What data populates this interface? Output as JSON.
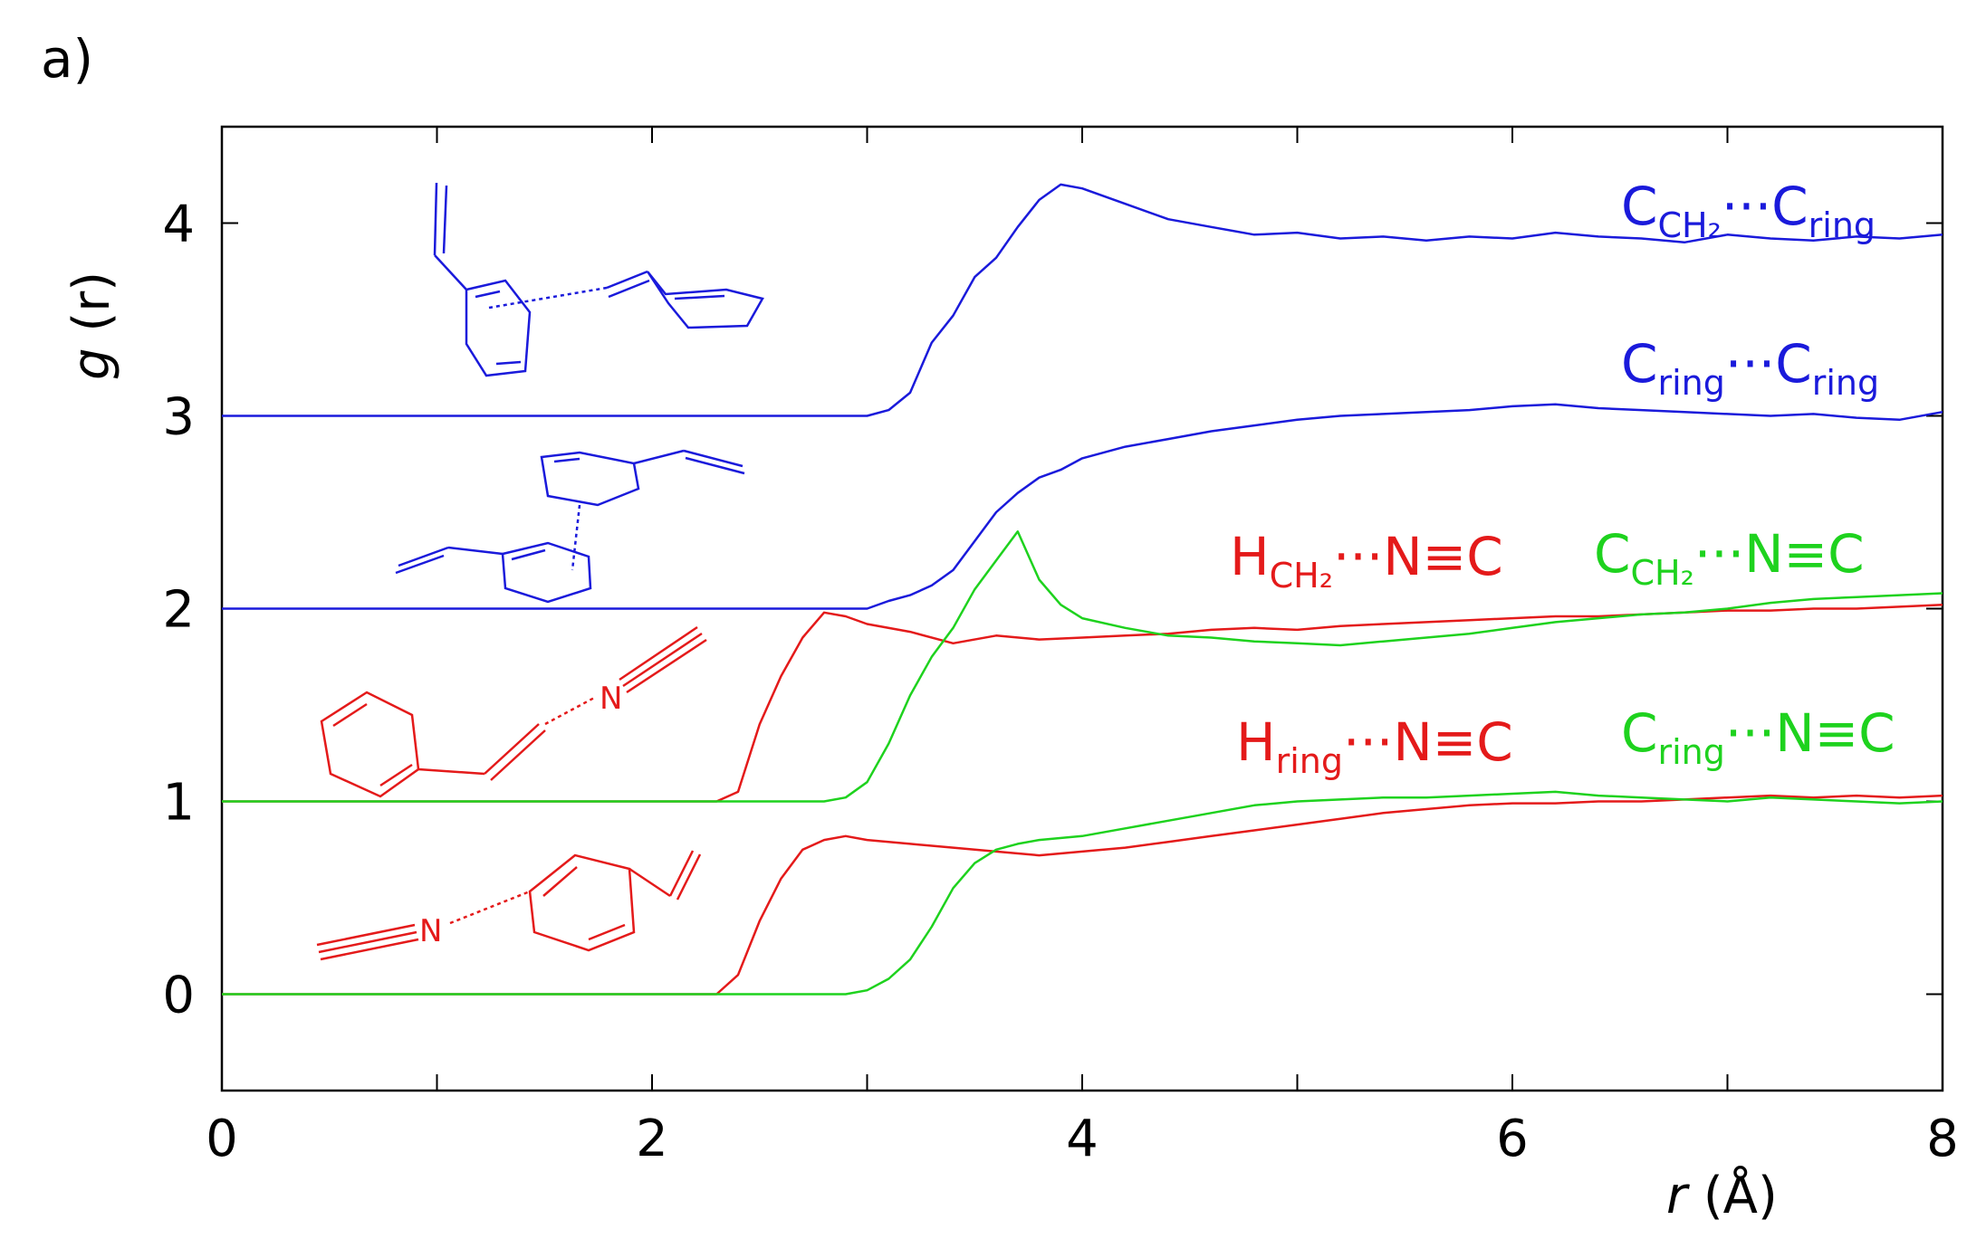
{
  "panel_label": "a)",
  "chart_data": {
    "type": "line",
    "xlabel": {
      "var": "r",
      "unit": " (Å)"
    },
    "ylabel": {
      "var": "g",
      "unit": " (r)"
    },
    "xlim": [
      0,
      8
    ],
    "ylim": [
      -0.5,
      4.5
    ],
    "xticks": [
      0,
      2,
      4,
      6,
      8
    ],
    "xticks_minor": [
      1,
      3,
      5,
      7
    ],
    "yticks": [
      0,
      1,
      2,
      3,
      4
    ],
    "grid": false,
    "colors": {
      "blue": "#1a1adb",
      "red": "#e41a1a",
      "green": "#1ed21e"
    },
    "series": [
      {
        "label": {
          "main": "C",
          "sub": "CH₂",
          "rest": "···C",
          "sub2": "ring"
        },
        "color": "#1a1adb",
        "points": [
          [
            0,
            3.0
          ],
          [
            3.0,
            3.0
          ],
          [
            3.1,
            3.03
          ],
          [
            3.2,
            3.12
          ],
          [
            3.3,
            3.38
          ],
          [
            3.4,
            3.52
          ],
          [
            3.5,
            3.72
          ],
          [
            3.6,
            3.82
          ],
          [
            3.7,
            3.98
          ],
          [
            3.8,
            4.12
          ],
          [
            3.9,
            4.2
          ],
          [
            4.0,
            4.18
          ],
          [
            4.2,
            4.1
          ],
          [
            4.4,
            4.02
          ],
          [
            4.6,
            3.98
          ],
          [
            4.8,
            3.94
          ],
          [
            5.0,
            3.95
          ],
          [
            5.2,
            3.92
          ],
          [
            5.4,
            3.93
          ],
          [
            5.6,
            3.91
          ],
          [
            5.8,
            3.93
          ],
          [
            6.0,
            3.92
          ],
          [
            6.2,
            3.95
          ],
          [
            6.4,
            3.93
          ],
          [
            6.6,
            3.92
          ],
          [
            6.8,
            3.9
          ],
          [
            7.0,
            3.94
          ],
          [
            7.2,
            3.92
          ],
          [
            7.4,
            3.91
          ],
          [
            7.6,
            3.93
          ],
          [
            7.8,
            3.92
          ],
          [
            8.0,
            3.94
          ]
        ]
      },
      {
        "label": {
          "main": "C",
          "sub": "ring",
          "rest": "···C",
          "sub2": "ring"
        },
        "color": "#1a1adb",
        "points": [
          [
            0,
            2.0
          ],
          [
            3.0,
            2.0
          ],
          [
            3.1,
            2.04
          ],
          [
            3.2,
            2.07
          ],
          [
            3.3,
            2.12
          ],
          [
            3.4,
            2.2
          ],
          [
            3.5,
            2.35
          ],
          [
            3.6,
            2.5
          ],
          [
            3.7,
            2.6
          ],
          [
            3.8,
            2.68
          ],
          [
            3.9,
            2.72
          ],
          [
            4.0,
            2.78
          ],
          [
            4.2,
            2.84
          ],
          [
            4.4,
            2.88
          ],
          [
            4.6,
            2.92
          ],
          [
            4.8,
            2.95
          ],
          [
            5.0,
            2.98
          ],
          [
            5.2,
            3.0
          ],
          [
            5.4,
            3.01
          ],
          [
            5.6,
            3.02
          ],
          [
            5.8,
            3.03
          ],
          [
            6.0,
            3.05
          ],
          [
            6.2,
            3.06
          ],
          [
            6.4,
            3.04
          ],
          [
            6.6,
            3.03
          ],
          [
            6.8,
            3.02
          ],
          [
            7.0,
            3.01
          ],
          [
            7.2,
            3.0
          ],
          [
            7.4,
            3.01
          ],
          [
            7.6,
            2.99
          ],
          [
            7.8,
            2.98
          ],
          [
            8.0,
            3.02
          ]
        ]
      },
      {
        "label": {
          "main": "H",
          "sub": "CH₂",
          "rest": "···N≡C",
          "sub2": ""
        },
        "color": "#e41a1a",
        "points": [
          [
            0,
            1.0
          ],
          [
            2.3,
            1.0
          ],
          [
            2.4,
            1.05
          ],
          [
            2.5,
            1.4
          ],
          [
            2.6,
            1.65
          ],
          [
            2.7,
            1.85
          ],
          [
            2.8,
            1.98
          ],
          [
            2.9,
            1.96
          ],
          [
            3.0,
            1.92
          ],
          [
            3.2,
            1.88
          ],
          [
            3.4,
            1.82
          ],
          [
            3.6,
            1.86
          ],
          [
            3.8,
            1.84
          ],
          [
            4.0,
            1.85
          ],
          [
            4.2,
            1.86
          ],
          [
            4.4,
            1.87
          ],
          [
            4.6,
            1.89
          ],
          [
            4.8,
            1.9
          ],
          [
            5.0,
            1.89
          ],
          [
            5.2,
            1.91
          ],
          [
            5.4,
            1.92
          ],
          [
            5.6,
            1.93
          ],
          [
            5.8,
            1.94
          ],
          [
            6.0,
            1.95
          ],
          [
            6.2,
            1.96
          ],
          [
            6.4,
            1.96
          ],
          [
            6.6,
            1.97
          ],
          [
            6.8,
            1.98
          ],
          [
            7.0,
            1.99
          ],
          [
            7.2,
            1.99
          ],
          [
            7.4,
            2.0
          ],
          [
            7.6,
            2.0
          ],
          [
            7.8,
            2.01
          ],
          [
            8.0,
            2.02
          ]
        ]
      },
      {
        "label": {
          "main": "C",
          "sub": "CH₂",
          "rest": "···N≡C",
          "sub2": ""
        },
        "color": "#1ed21e",
        "points": [
          [
            0,
            1.0
          ],
          [
            2.8,
            1.0
          ],
          [
            2.9,
            1.02
          ],
          [
            3.0,
            1.1
          ],
          [
            3.1,
            1.3
          ],
          [
            3.2,
            1.55
          ],
          [
            3.3,
            1.75
          ],
          [
            3.4,
            1.9
          ],
          [
            3.5,
            2.1
          ],
          [
            3.6,
            2.25
          ],
          [
            3.7,
            2.4
          ],
          [
            3.8,
            2.15
          ],
          [
            3.9,
            2.02
          ],
          [
            4.0,
            1.95
          ],
          [
            4.2,
            1.9
          ],
          [
            4.4,
            1.86
          ],
          [
            4.6,
            1.85
          ],
          [
            4.8,
            1.83
          ],
          [
            5.0,
            1.82
          ],
          [
            5.2,
            1.81
          ],
          [
            5.4,
            1.83
          ],
          [
            5.6,
            1.85
          ],
          [
            5.8,
            1.87
          ],
          [
            6.0,
            1.9
          ],
          [
            6.2,
            1.93
          ],
          [
            6.4,
            1.95
          ],
          [
            6.6,
            1.97
          ],
          [
            6.8,
            1.98
          ],
          [
            7.0,
            2.0
          ],
          [
            7.2,
            2.03
          ],
          [
            7.4,
            2.05
          ],
          [
            7.6,
            2.06
          ],
          [
            7.8,
            2.07
          ],
          [
            8.0,
            2.08
          ]
        ]
      },
      {
        "label": {
          "main": "H",
          "sub": "ring",
          "rest": "···N≡C",
          "sub2": ""
        },
        "color": "#e41a1a",
        "points": [
          [
            0,
            0.0
          ],
          [
            2.3,
            0.0
          ],
          [
            2.4,
            0.1
          ],
          [
            2.5,
            0.38
          ],
          [
            2.6,
            0.6
          ],
          [
            2.7,
            0.75
          ],
          [
            2.8,
            0.8
          ],
          [
            2.9,
            0.82
          ],
          [
            3.0,
            0.8
          ],
          [
            3.2,
            0.78
          ],
          [
            3.4,
            0.76
          ],
          [
            3.6,
            0.74
          ],
          [
            3.8,
            0.72
          ],
          [
            4.0,
            0.74
          ],
          [
            4.2,
            0.76
          ],
          [
            4.4,
            0.79
          ],
          [
            4.6,
            0.82
          ],
          [
            4.8,
            0.85
          ],
          [
            5.0,
            0.88
          ],
          [
            5.2,
            0.91
          ],
          [
            5.4,
            0.94
          ],
          [
            5.6,
            0.96
          ],
          [
            5.8,
            0.98
          ],
          [
            6.0,
            0.99
          ],
          [
            6.2,
            0.99
          ],
          [
            6.4,
            1.0
          ],
          [
            6.6,
            1.0
          ],
          [
            6.8,
            1.01
          ],
          [
            7.0,
            1.02
          ],
          [
            7.2,
            1.03
          ],
          [
            7.4,
            1.02
          ],
          [
            7.6,
            1.03
          ],
          [
            7.8,
            1.02
          ],
          [
            8.0,
            1.03
          ]
        ]
      },
      {
        "label": {
          "main": "C",
          "sub": "ring",
          "rest": "···N≡C",
          "sub2": ""
        },
        "color": "#1ed21e",
        "points": [
          [
            0,
            0.0
          ],
          [
            2.9,
            0.0
          ],
          [
            3.0,
            0.02
          ],
          [
            3.1,
            0.08
          ],
          [
            3.2,
            0.18
          ],
          [
            3.3,
            0.35
          ],
          [
            3.4,
            0.55
          ],
          [
            3.5,
            0.68
          ],
          [
            3.6,
            0.75
          ],
          [
            3.7,
            0.78
          ],
          [
            3.8,
            0.8
          ],
          [
            4.0,
            0.82
          ],
          [
            4.2,
            0.86
          ],
          [
            4.4,
            0.9
          ],
          [
            4.6,
            0.94
          ],
          [
            4.8,
            0.98
          ],
          [
            5.0,
            1.0
          ],
          [
            5.2,
            1.01
          ],
          [
            5.4,
            1.02
          ],
          [
            5.6,
            1.02
          ],
          [
            5.8,
            1.03
          ],
          [
            6.0,
            1.04
          ],
          [
            6.2,
            1.05
          ],
          [
            6.4,
            1.03
          ],
          [
            6.6,
            1.02
          ],
          [
            6.8,
            1.01
          ],
          [
            7.0,
            1.0
          ],
          [
            7.2,
            1.02
          ],
          [
            7.4,
            1.01
          ],
          [
            7.6,
            1.0
          ],
          [
            7.8,
            0.99
          ],
          [
            8.0,
            1.0
          ]
        ]
      }
    ]
  },
  "molecules": [
    {
      "name": "styrene-ring-ch2-contact",
      "color": "#1a1adb"
    },
    {
      "name": "styrene-ring-ring-contact",
      "color": "#1a1adb"
    },
    {
      "name": "styrene-ch2-acetonitrile-contact",
      "color": "#e41a1a"
    },
    {
      "name": "styrene-ring-acetonitrile-contact",
      "color": "#e41a1a"
    }
  ],
  "atom_label": "N"
}
